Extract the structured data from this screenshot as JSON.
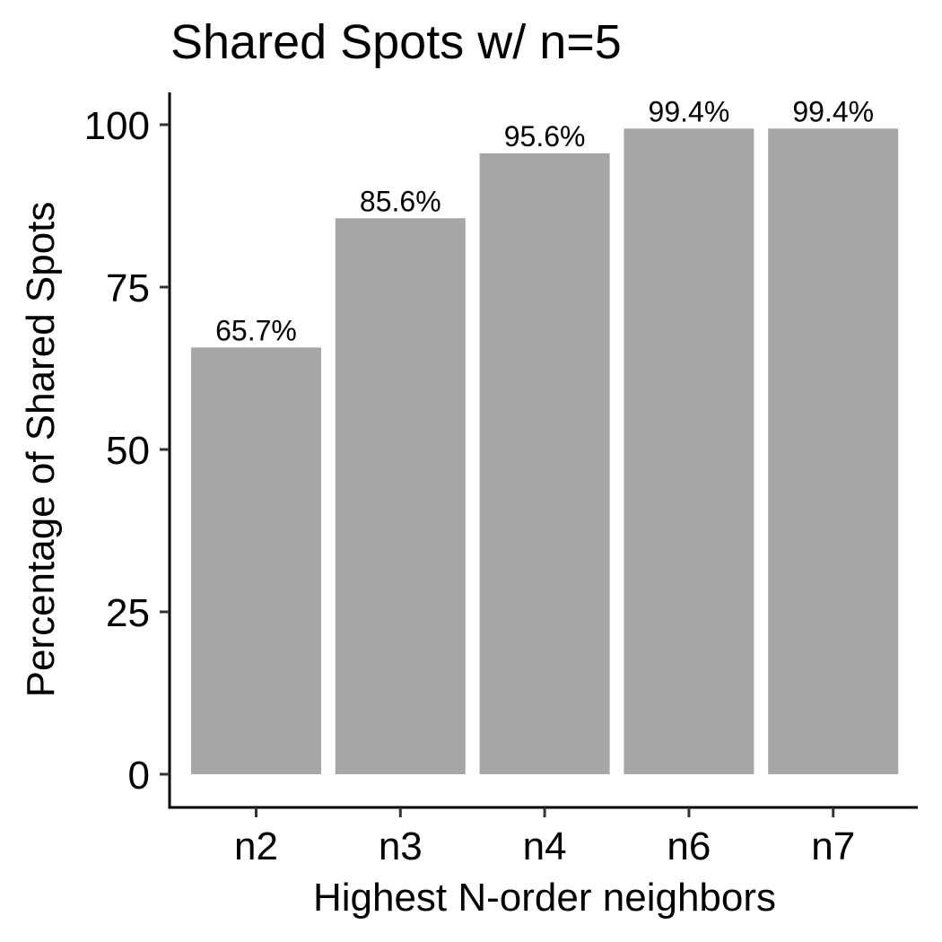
{
  "chart_data": {
    "type": "bar",
    "title": "Shared Spots w/ n=5",
    "xlabel": "Highest N-order neighbors",
    "ylabel": "Percentage of Shared Spots",
    "categories": [
      "n2",
      "n3",
      "n4",
      "n6",
      "n7"
    ],
    "values": [
      65.7,
      85.6,
      95.6,
      99.4,
      99.4
    ],
    "data_labels": [
      "65.7%",
      "85.6%",
      "95.6%",
      "99.4%",
      "99.4%"
    ],
    "ylim": [
      0,
      100
    ],
    "yticks": [
      0,
      25,
      50,
      75,
      100
    ],
    "grid": false,
    "legend": "none",
    "bar_color": "#a6a6a6"
  }
}
